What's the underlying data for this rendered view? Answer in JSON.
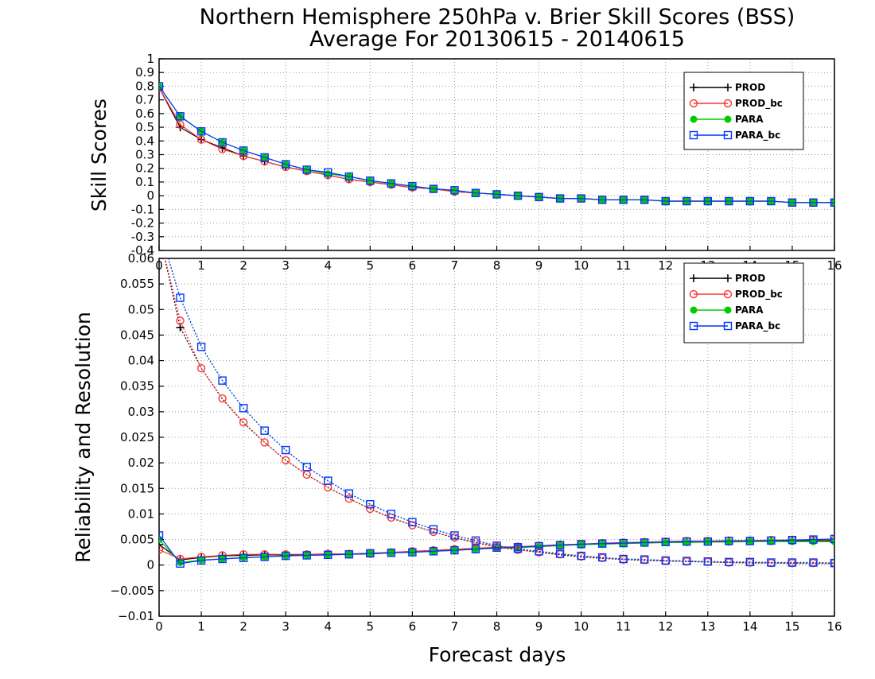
{
  "chart_data": [
    {
      "type": "line",
      "title": "Northern Hemisphere 250hPa v. Brier Skill Scores (BSS)",
      "subtitle": "Average For 20130615 - 20140615",
      "xlabel": "",
      "ylabel": "Skill Scores",
      "xlim": [
        0,
        16
      ],
      "ylim": [
        -0.4,
        1
      ],
      "x_ticks": [
        0,
        1,
        2,
        3,
        4,
        5,
        6,
        7,
        8,
        9,
        10,
        11,
        12,
        13,
        14,
        15,
        16
      ],
      "y_ticks": [
        -0.4,
        -0.3,
        -0.2,
        -0.1,
        0,
        0.1,
        0.2,
        0.3,
        0.4,
        0.5,
        0.6,
        0.7,
        0.8,
        0.9,
        1
      ],
      "grid": true,
      "legend_position": "top-right",
      "x": [
        0,
        0.5,
        1,
        1.5,
        2,
        2.5,
        3,
        3.5,
        4,
        4.5,
        5,
        5.5,
        6,
        6.5,
        7,
        7.5,
        8,
        8.5,
        9,
        9.5,
        10,
        10.5,
        11,
        11.5,
        12,
        12.5,
        13,
        13.5,
        14,
        14.5,
        15,
        15.5,
        16
      ],
      "series": [
        {
          "name": "PROD",
          "color": "#000000",
          "marker": "plus",
          "values": [
            0.79,
            0.5,
            0.41,
            0.35,
            0.29,
            0.25,
            0.21,
            0.18,
            0.15,
            0.12,
            0.1,
            0.08,
            0.06,
            0.05,
            0.03,
            0.02,
            0.01,
            0.0,
            -0.01,
            -0.02,
            -0.02,
            -0.03,
            -0.03,
            -0.03,
            -0.04,
            -0.04,
            -0.04,
            -0.04,
            -0.04,
            -0.04,
            -0.05,
            -0.05,
            -0.05
          ]
        },
        {
          "name": "PROD_bc",
          "color": "#ff3333",
          "marker": "circle",
          "values": [
            0.79,
            0.52,
            0.41,
            0.34,
            0.29,
            0.25,
            0.21,
            0.18,
            0.15,
            0.12,
            0.1,
            0.08,
            0.06,
            0.05,
            0.03,
            0.02,
            0.01,
            0.0,
            -0.01,
            -0.02,
            -0.02,
            -0.03,
            -0.03,
            -0.03,
            -0.04,
            -0.04,
            -0.04,
            -0.04,
            -0.04,
            -0.04,
            -0.05,
            -0.05,
            -0.05
          ]
        },
        {
          "name": "PARA",
          "color": "#00cc00",
          "marker": "dot",
          "values": [
            0.8,
            0.58,
            0.47,
            0.39,
            0.33,
            0.28,
            0.23,
            0.19,
            0.16,
            0.14,
            0.11,
            0.09,
            0.07,
            0.05,
            0.04,
            0.02,
            0.01,
            0.0,
            -0.01,
            -0.02,
            -0.02,
            -0.03,
            -0.03,
            -0.03,
            -0.04,
            -0.04,
            -0.04,
            -0.04,
            -0.04,
            -0.04,
            -0.05,
            -0.05,
            -0.05
          ]
        },
        {
          "name": "PARA_bc",
          "color": "#0033ff",
          "marker": "square",
          "values": [
            0.8,
            0.58,
            0.47,
            0.39,
            0.33,
            0.28,
            0.23,
            0.19,
            0.17,
            0.14,
            0.11,
            0.09,
            0.07,
            0.05,
            0.04,
            0.02,
            0.01,
            0.0,
            -0.01,
            -0.02,
            -0.02,
            -0.03,
            -0.03,
            -0.03,
            -0.04,
            -0.04,
            -0.04,
            -0.04,
            -0.04,
            -0.04,
            -0.05,
            -0.05,
            -0.05
          ]
        }
      ]
    },
    {
      "type": "line",
      "title": "",
      "xlabel": "Forecast days",
      "ylabel": "Reliability and Resolution",
      "xlim": [
        0,
        16
      ],
      "ylim": [
        -0.01,
        0.06
      ],
      "x_ticks": [
        0,
        1,
        2,
        3,
        4,
        5,
        6,
        7,
        8,
        9,
        10,
        11,
        12,
        13,
        14,
        15,
        16
      ],
      "y_ticks": [
        -0.01,
        -0.005,
        0,
        0.005,
        0.01,
        0.015,
        0.02,
        0.025,
        0.03,
        0.035,
        0.04,
        0.045,
        0.05,
        0.055,
        0.06
      ],
      "y_tick_labels": [
        "−0.01",
        "−0.005",
        "0",
        "0.005",
        "0.01",
        "0.015",
        "0.02",
        "0.025",
        "0.03",
        "0.035",
        "0.04",
        "0.045",
        "0.05",
        "0.055",
        "0.06"
      ],
      "grid": true,
      "legend_position": "top-right",
      "x": [
        0,
        0.5,
        1,
        1.5,
        2,
        2.5,
        3,
        3.5,
        4,
        4.5,
        5,
        5.5,
        6,
        6.5,
        7,
        7.5,
        8,
        8.5,
        9,
        9.5,
        10,
        10.5,
        11,
        11.5,
        12,
        12.5,
        13,
        13.5,
        14,
        14.5,
        15,
        15.5,
        16
      ],
      "series": [
        {
          "name": "PROD",
          "line": "solid",
          "color": "#000000",
          "marker": "plus",
          "values": [
            0.004,
            0.001,
            0.0015,
            0.0018,
            0.0019,
            0.002,
            0.002,
            0.002,
            0.0021,
            0.0021,
            0.0022,
            0.0024,
            0.0026,
            0.0028,
            0.003,
            0.0032,
            0.0034,
            0.0035,
            0.0037,
            0.0039,
            0.004,
            0.0042,
            0.0043,
            0.0044,
            0.0045,
            0.0046,
            0.0046,
            0.0047,
            0.0047,
            0.0048,
            0.0048,
            0.0048,
            0.0048
          ]
        },
        {
          "name": "PROD_bc",
          "line": "solid",
          "color": "#ff3333",
          "marker": "circle",
          "values": [
            0.003,
            0.0012,
            0.0016,
            0.0019,
            0.0021,
            0.0021,
            0.0021,
            0.0021,
            0.0022,
            0.0022,
            0.0023,
            0.0025,
            0.0027,
            0.0029,
            0.0031,
            0.0033,
            0.0035,
            0.0036,
            0.0038,
            0.004,
            0.0041,
            0.0043,
            0.0044,
            0.0045,
            0.0046,
            0.0047,
            0.0047,
            0.0048,
            0.0048,
            0.0049,
            0.0049,
            0.0049,
            0.0049
          ]
        },
        {
          "name": "PARA",
          "line": "solid",
          "color": "#00cc00",
          "marker": "dot",
          "values": [
            0.005,
            0.0005,
            0.001,
            0.0012,
            0.0015,
            0.0016,
            0.0018,
            0.0019,
            0.002,
            0.0021,
            0.0023,
            0.0024,
            0.0025,
            0.0027,
            0.0029,
            0.0031,
            0.0033,
            0.0034,
            0.0036,
            0.0038,
            0.004,
            0.0041,
            0.0042,
            0.0043,
            0.0044,
            0.0044,
            0.0045,
            0.0045,
            0.0046,
            0.0046,
            0.0046,
            0.0046,
            0.0046
          ]
        },
        {
          "name": "PARA_bc",
          "line": "solid",
          "color": "#0033ff",
          "marker": "square",
          "values": [
            0.0058,
            0.0003,
            0.0009,
            0.0012,
            0.0014,
            0.0016,
            0.0018,
            0.0019,
            0.002,
            0.0021,
            0.0023,
            0.0024,
            0.0025,
            0.0027,
            0.0029,
            0.0031,
            0.0034,
            0.0035,
            0.0037,
            0.0039,
            0.0041,
            0.0042,
            0.0043,
            0.0044,
            0.0045,
            0.0046,
            0.0046,
            0.0047,
            0.0047,
            0.0048,
            0.0049,
            0.005,
            0.0051
          ]
        },
        {
          "name": "PROD",
          "line": "dotted",
          "color": "#000000",
          "marker": "plus",
          "values": [
            0.065,
            0.0465,
            0.0385,
            0.0325,
            0.0278,
            0.024,
            0.0205,
            0.0177,
            0.0152,
            0.013,
            0.011,
            0.0092,
            0.0078,
            0.0065,
            0.0053,
            0.0044,
            0.0035,
            0.003,
            0.0025,
            0.002,
            0.0016,
            0.0013,
            0.0011,
            0.0009,
            0.0008,
            0.0007,
            0.0006,
            0.0005,
            0.0004,
            0.0004,
            0.0003,
            0.0003,
            0.0003
          ]
        },
        {
          "name": "PROD_bc",
          "line": "dotted",
          "color": "#ff3333",
          "marker": "circle",
          "values": [
            0.065,
            0.0478,
            0.0385,
            0.0326,
            0.0279,
            0.024,
            0.0205,
            0.0177,
            0.0152,
            0.013,
            0.011,
            0.0093,
            0.0078,
            0.0065,
            0.0054,
            0.0045,
            0.0036,
            0.003,
            0.0025,
            0.0021,
            0.0017,
            0.0014,
            0.0011,
            0.001,
            0.0008,
            0.0007,
            0.0006,
            0.0005,
            0.0005,
            0.0004,
            0.0004,
            0.0004,
            0.0004
          ]
        },
        {
          "name": "PARA",
          "line": "dotted",
          "color": "#00cc00",
          "marker": "dot",
          "values": [
            0.066,
            0.0523,
            0.0427,
            0.0361,
            0.0307,
            0.0263,
            0.0225,
            0.0192,
            0.0165,
            0.014,
            0.0119,
            0.01,
            0.0084,
            0.007,
            0.0058,
            0.0048,
            0.0038,
            0.0032,
            0.0027,
            0.0022,
            0.0018,
            0.0015,
            0.0012,
            0.0011,
            0.0009,
            0.0008,
            0.0007,
            0.0006,
            0.0006,
            0.0005,
            0.0005,
            0.0005,
            0.0004
          ]
        },
        {
          "name": "PARA_bc",
          "line": "dotted",
          "color": "#0033ff",
          "marker": "square",
          "values": [
            0.066,
            0.0523,
            0.0427,
            0.0361,
            0.0307,
            0.0263,
            0.0225,
            0.0192,
            0.0165,
            0.014,
            0.0119,
            0.01,
            0.0084,
            0.007,
            0.0058,
            0.0048,
            0.0038,
            0.0032,
            0.0027,
            0.0022,
            0.0018,
            0.0015,
            0.0012,
            0.0011,
            0.0009,
            0.0008,
            0.0007,
            0.0006,
            0.0006,
            0.0005,
            0.0005,
            0.0005,
            0.0004
          ]
        }
      ]
    }
  ]
}
